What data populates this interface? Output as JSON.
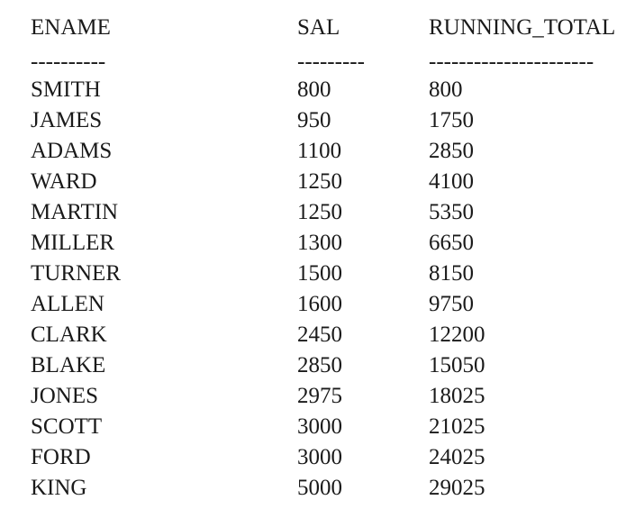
{
  "columns": [
    "ENAME",
    "SAL",
    "RUNNING_TOTAL"
  ],
  "separators": [
    "----------",
    "---------",
    "----------------------"
  ],
  "rows": [
    [
      "SMITH",
      "800",
      "800"
    ],
    [
      "JAMES",
      "950",
      "1750"
    ],
    [
      "ADAMS",
      "1100",
      "2850"
    ],
    [
      "WARD",
      "1250",
      "4100"
    ],
    [
      "MARTIN",
      "1250",
      "5350"
    ],
    [
      "MILLER",
      "1300",
      "6650"
    ],
    [
      "TURNER",
      "1500",
      "8150"
    ],
    [
      "ALLEN",
      "1600",
      "9750"
    ],
    [
      "CLARK",
      "2450",
      "12200"
    ],
    [
      "BLAKE",
      "2850",
      "15050"
    ],
    [
      "JONES",
      "2975",
      "18025"
    ],
    [
      "SCOTT",
      "3000",
      "21025"
    ],
    [
      "FORD",
      "3000",
      "24025"
    ],
    [
      "KING",
      "5000",
      "29025"
    ]
  ]
}
